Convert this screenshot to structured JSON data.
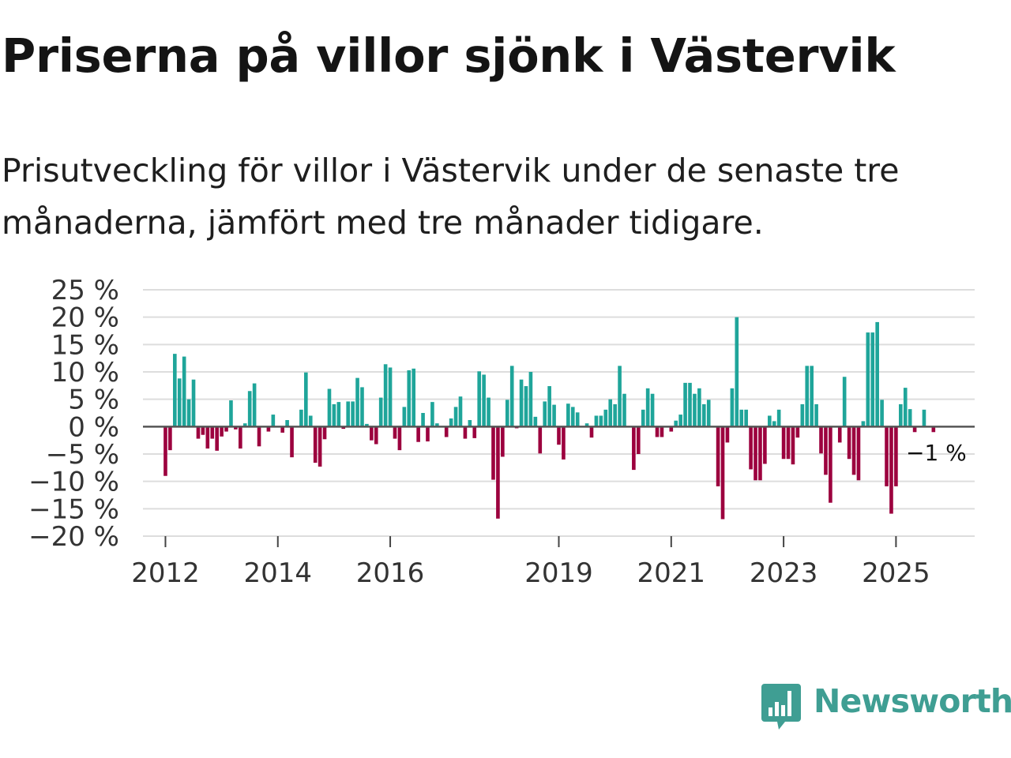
{
  "title": "Priserna på villor sjönk i Västervik",
  "subtitle": "Prisutveckling för villor i Västervik under de senaste tre månaderna, jämfört med tre månader tidigare.",
  "logo": {
    "text": "Newsworthy",
    "icon": "newsworthy-chart-bubble-icon"
  },
  "colors": {
    "positive": "#1fa59a",
    "negative": "#9c003e",
    "grid": "#dddddd",
    "zero_line": "#555555",
    "axis_text": "#333333",
    "logo": "#3f9e93"
  },
  "chart_data": {
    "type": "bar",
    "title": "Priserna på villor sjönk i Västervik",
    "xlabel": "",
    "ylabel": "",
    "unit": "%",
    "ylim": [
      -20,
      25
    ],
    "yticks": [
      25,
      20,
      15,
      10,
      5,
      0,
      -5,
      -10,
      -15,
      -20
    ],
    "ytick_labels": [
      "25 %",
      "20 %",
      "15 %",
      "10 %",
      "5 %",
      "0 %",
      "−5 %",
      "−10 %",
      "−15 %",
      "−20 %"
    ],
    "xlim": [
      2011.6,
      2026.4
    ],
    "xticks": [
      {
        "year": 2012,
        "label": "2012"
      },
      {
        "year": 2014,
        "label": "2014"
      },
      {
        "year": 2016,
        "label": "2016"
      },
      {
        "year": 2019,
        "label": "2019"
      },
      {
        "year": 2021,
        "label": "2021"
      },
      {
        "year": 2023,
        "label": "2023"
      },
      {
        "year": 2025,
        "label": "2025"
      }
    ],
    "start": {
      "year": 2012,
      "month": 1
    },
    "values": [
      -9,
      -4.3,
      13.3,
      8.8,
      12.8,
      5,
      8.6,
      -2.2,
      -1.5,
      -4,
      -2.2,
      -4.4,
      -1.8,
      -0.9,
      4.8,
      -0.5,
      -4,
      0.6,
      6.5,
      7.9,
      -3.6,
      0,
      -0.9,
      2.2,
      0,
      -1.1,
      1.2,
      -5.6,
      0,
      3.1,
      9.9,
      2,
      -6.6,
      -7.3,
      -2.3,
      6.9,
      4.1,
      4.5,
      -0.4,
      4.6,
      4.6,
      8.9,
      7.2,
      0.5,
      -2.5,
      -3.2,
      5.3,
      11.4,
      10.8,
      -2.2,
      -4.3,
      3.6,
      10.3,
      10.6,
      -2.8,
      2.5,
      -2.7,
      4.5,
      0.6,
      0,
      -1.9,
      1.5,
      3.6,
      5.5,
      -2.2,
      1.2,
      -2.1,
      10.1,
      9.5,
      5.3,
      -9.7,
      -16.8,
      -5.5,
      4.9,
      11.1,
      -0.3,
      8.6,
      7.4,
      10,
      1.8,
      -4.9,
      4.6,
      7.4,
      4,
      -3.3,
      -6,
      4.2,
      3.6,
      2.6,
      0,
      0.6,
      -2,
      2,
      2,
      3.1,
      5,
      4.1,
      11.1,
      6,
      0,
      -7.9,
      -5,
      3.1,
      7,
      6,
      -1.9,
      -1.9,
      0,
      -0.9,
      1.1,
      2.2,
      8,
      8,
      6,
      7,
      4.1,
      4.9,
      0,
      -10.9,
      -16.9,
      -2.9,
      7,
      20,
      3.1,
      3.1,
      -7.8,
      -9.8,
      -9.8,
      -6.8,
      2,
      1,
      3.1,
      -5.9,
      -5.9,
      -6.9,
      -2,
      4.1,
      11.1,
      11.1,
      4.1,
      -4.9,
      -8.8,
      -13.9,
      0,
      -2.9,
      9.1,
      -5.9,
      -8.8,
      -9.8,
      1,
      17.2,
      17.2,
      19.1,
      4.9,
      -10.9,
      -15.9,
      -10.9,
      4.1,
      7.1,
      3.2,
      -1,
      0,
      3.1,
      0,
      -1
    ],
    "annotation": {
      "text": "−1 %",
      "target": "last"
    }
  }
}
